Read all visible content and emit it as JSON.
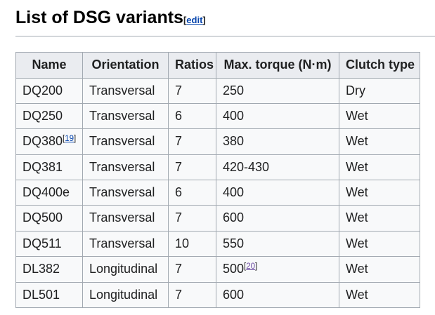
{
  "section": {
    "heading": "List of DSG variants",
    "edit": {
      "open": "[",
      "label": "edit",
      "close": "]"
    }
  },
  "refs": {
    "open": "[",
    "close": "]"
  },
  "colors": {
    "text": "#202122",
    "heading_text": "#000000",
    "link_blue": "#0645ad",
    "link_visited_purple": "#6b4ba1",
    "table_border": "#a2a9b1",
    "header_row_bg": "#eaecf0",
    "body_row_bg": "#f8f9fa",
    "page_bg": "#ffffff"
  },
  "table": {
    "columns": [
      {
        "key": "name",
        "label": "Name"
      },
      {
        "key": "orientation",
        "label": "Orientation"
      },
      {
        "key": "ratios",
        "label": "Ratios"
      },
      {
        "key": "torque",
        "label": "Max. torque (N·m)"
      },
      {
        "key": "clutch",
        "label": "Clutch type"
      }
    ],
    "rows": [
      {
        "name": "DQ200",
        "orientation": "Transversal",
        "ratios": "7",
        "torque": "250",
        "clutch": "Dry"
      },
      {
        "name": "DQ250",
        "orientation": "Transversal",
        "ratios": "6",
        "torque": "400",
        "clutch": "Wet"
      },
      {
        "name": "DQ380",
        "name_ref": {
          "label": "19",
          "visited": false
        },
        "orientation": "Transversal",
        "ratios": "7",
        "torque": "380",
        "clutch": "Wet"
      },
      {
        "name": "DQ381",
        "orientation": "Transversal",
        "ratios": "7",
        "torque": "420-430",
        "clutch": "Wet"
      },
      {
        "name": "DQ400e",
        "orientation": "Transversal",
        "ratios": "6",
        "torque": "400",
        "clutch": "Wet"
      },
      {
        "name": "DQ500",
        "orientation": "Transversal",
        "ratios": "7",
        "torque": "600",
        "clutch": "Wet"
      },
      {
        "name": "DQ511",
        "orientation": "Transversal",
        "ratios": "10",
        "torque": "550",
        "clutch": "Wet"
      },
      {
        "name": "DL382",
        "orientation": "Longitudinal",
        "ratios": "7",
        "torque": "500",
        "torque_ref": {
          "label": "20",
          "visited": true
        },
        "clutch": "Wet"
      },
      {
        "name": "DL501",
        "orientation": "Longitudinal",
        "ratios": "7",
        "torque": "600",
        "clutch": "Wet"
      }
    ]
  }
}
